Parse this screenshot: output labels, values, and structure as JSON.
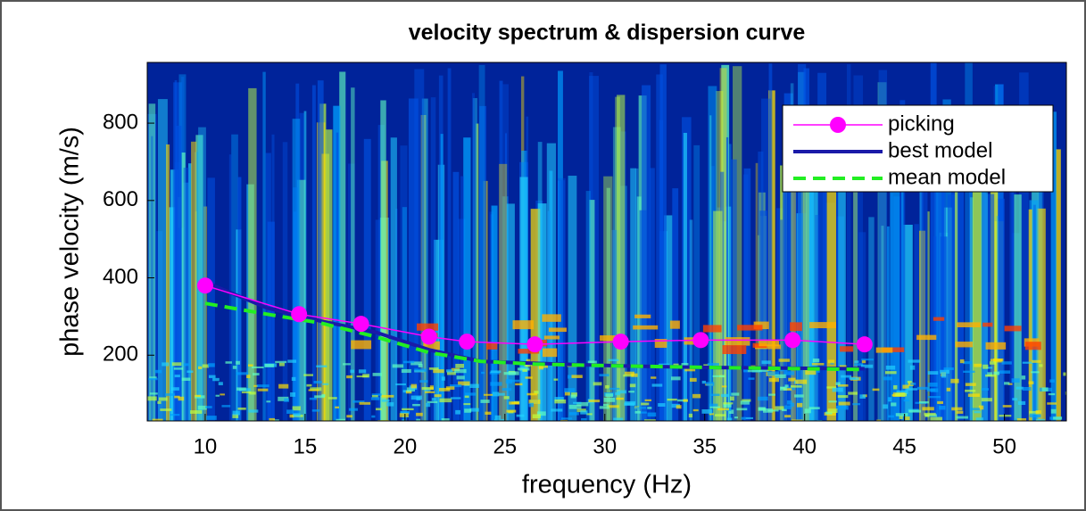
{
  "chart_data": {
    "type": "line",
    "title": "velocity spectrum & dispersion curve",
    "x_label": "frequency (Hz)",
    "y_label": "phase velocity (m/s)",
    "xlim": [
      7.1,
      53.1
    ],
    "ylim": [
      30,
      957
    ],
    "xticks": [
      10,
      15,
      20,
      25,
      30,
      35,
      40,
      45,
      50
    ],
    "yticks": [
      200,
      400,
      600,
      800
    ],
    "legend_position": "upper right",
    "series": [
      {
        "name": "picking",
        "color": "#ff00ff",
        "marker": "o",
        "linestyle": "solid",
        "linewidth": 1.5,
        "x": [
          10,
          14.7,
          17.8,
          21.2,
          23.1,
          26.5,
          30.8,
          34.8,
          39.4,
          43.0
        ],
        "values": [
          380,
          306,
          281,
          248,
          235,
          228,
          235,
          239,
          239,
          228
        ]
      },
      {
        "name": "best model",
        "color": "#1a1aa8",
        "linestyle": "solid",
        "linewidth": 4,
        "x": [
          10,
          13.1,
          15.8,
          18.5,
          21.2,
          23.8,
          26.5,
          31,
          35.5,
          43
        ],
        "values": [
          389,
          322,
          288,
          260,
          214,
          184,
          179,
          172,
          168,
          165
        ]
      },
      {
        "name": "mean model",
        "color": "#22ee22",
        "linestyle": "dashed",
        "linewidth": 4,
        "x": [
          10,
          13.1,
          15.8,
          18.5,
          21.2,
          23.8,
          26.5,
          31,
          35.5,
          43
        ],
        "values": [
          334,
          306,
          283,
          248,
          207,
          184,
          177,
          172,
          168,
          163
        ]
      }
    ]
  }
}
